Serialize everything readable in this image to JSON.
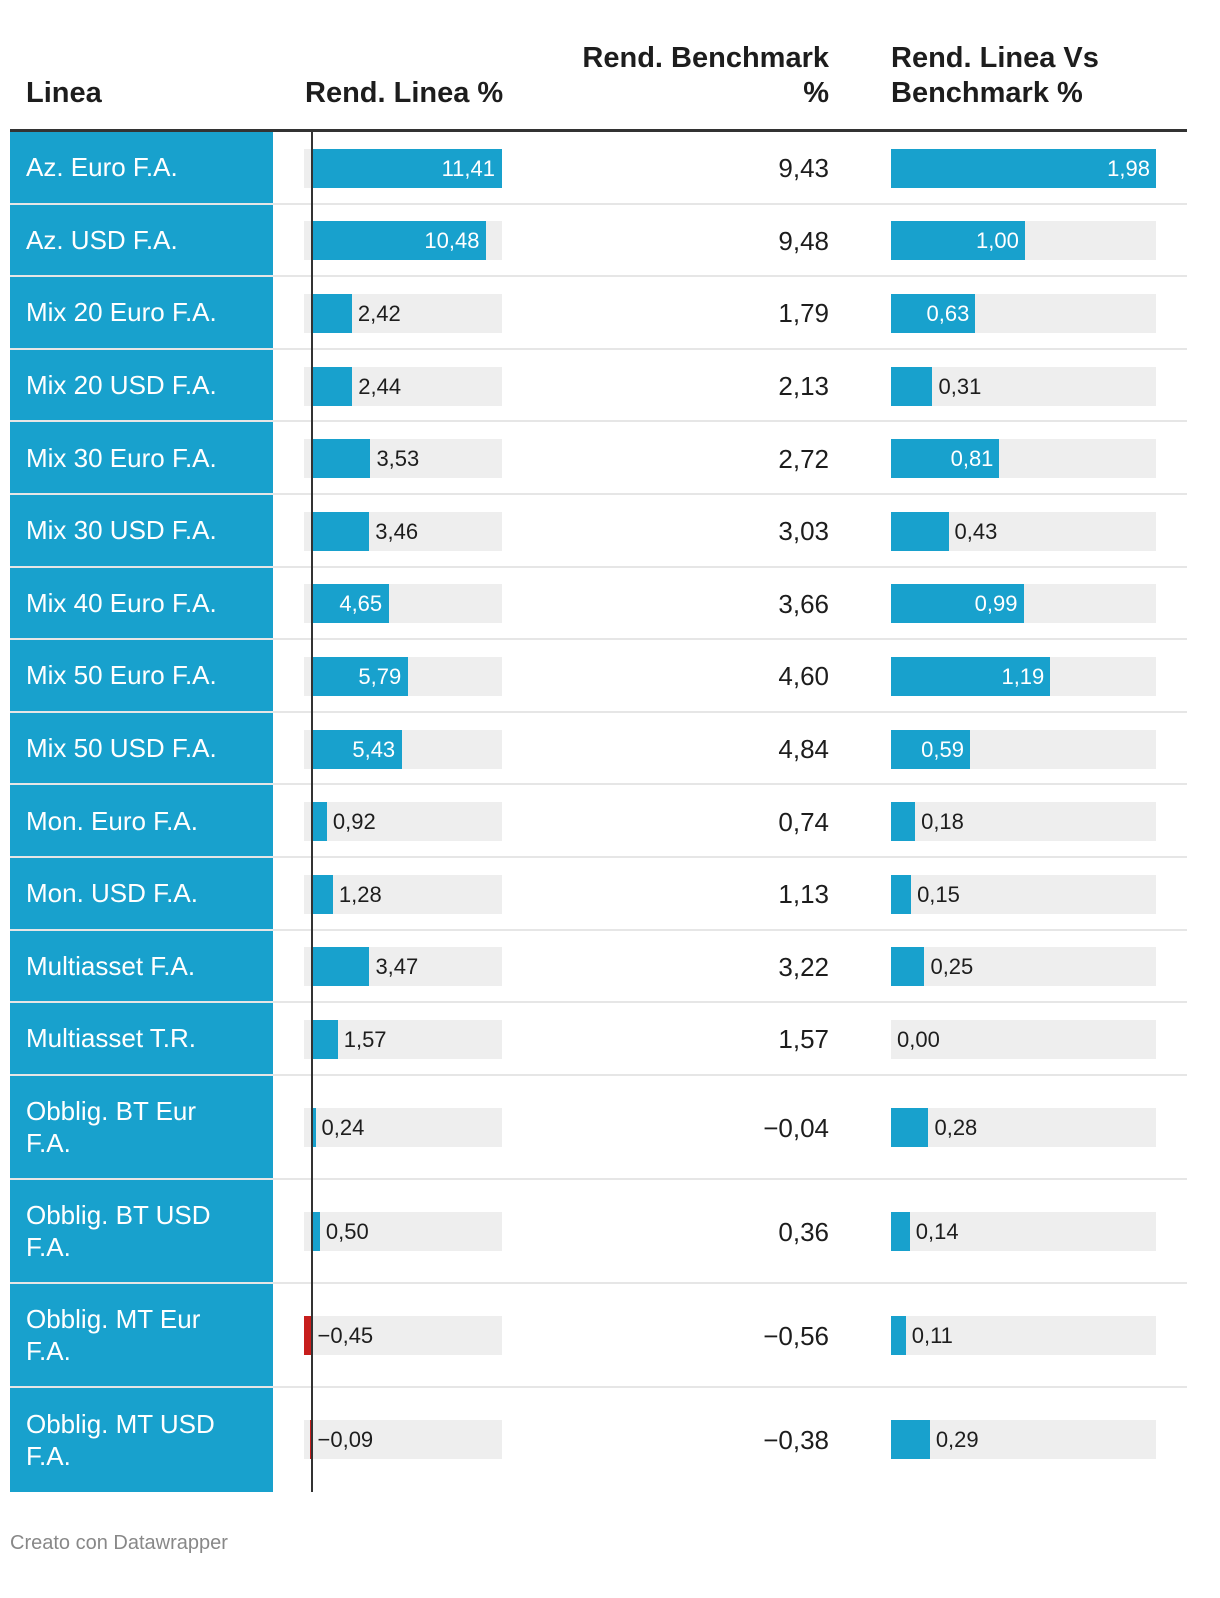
{
  "header": {
    "col1": "Linea",
    "col2": "Rend. Linea %",
    "col3_line1": "Rend. Benchmark",
    "col3_line2": "%",
    "col4_line1": "Rend. Linea Vs",
    "col4_line2": "Benchmark %"
  },
  "colors": {
    "positive": "#18a1cd",
    "negative": "#c71e1d",
    "track": "#eeeeee"
  },
  "chart_data": {
    "type": "table",
    "columns": [
      "Linea",
      "Rend. Linea %",
      "Rend. Benchmark %",
      "Rend. Linea Vs Benchmark %"
    ],
    "rows": [
      {
        "name": "Az. Euro F.A.",
        "rend": 11.41,
        "rend_label": "11,41",
        "bench": "9,43",
        "diff": 1.98,
        "diff_label": "1,98"
      },
      {
        "name": "Az. USD F.A.",
        "rend": 10.48,
        "rend_label": "10,48",
        "bench": "9,48",
        "diff": 1.0,
        "diff_label": "1,00"
      },
      {
        "name": "Mix 20 Euro F.A.",
        "rend": 2.42,
        "rend_label": "2,42",
        "bench": "1,79",
        "diff": 0.63,
        "diff_label": "0,63"
      },
      {
        "name": "Mix 20 USD F.A.",
        "rend": 2.44,
        "rend_label": "2,44",
        "bench": "2,13",
        "diff": 0.31,
        "diff_label": "0,31"
      },
      {
        "name": "Mix 30 Euro F.A.",
        "rend": 3.53,
        "rend_label": "3,53",
        "bench": "2,72",
        "diff": 0.81,
        "diff_label": "0,81"
      },
      {
        "name": "Mix 30 USD F.A.",
        "rend": 3.46,
        "rend_label": "3,46",
        "bench": "3,03",
        "diff": 0.43,
        "diff_label": "0,43"
      },
      {
        "name": "Mix 40 Euro F.A.",
        "rend": 4.65,
        "rend_label": "4,65",
        "bench": "3,66",
        "diff": 0.99,
        "diff_label": "0,99"
      },
      {
        "name": "Mix 50 Euro F.A.",
        "rend": 5.79,
        "rend_label": "5,79",
        "bench": "4,60",
        "diff": 1.19,
        "diff_label": "1,19"
      },
      {
        "name": "Mix 50 USD F.A.",
        "rend": 5.43,
        "rend_label": "5,43",
        "bench": "4,84",
        "diff": 0.59,
        "diff_label": "0,59"
      },
      {
        "name": "Mon. Euro F.A.",
        "rend": 0.92,
        "rend_label": "0,92",
        "bench": "0,74",
        "diff": 0.18,
        "diff_label": "0,18"
      },
      {
        "name": "Mon. USD F.A.",
        "rend": 1.28,
        "rend_label": "1,28",
        "bench": "1,13",
        "diff": 0.15,
        "diff_label": "0,15"
      },
      {
        "name": "Multiasset F.A.",
        "rend": 3.47,
        "rend_label": "3,47",
        "bench": "3,22",
        "diff": 0.25,
        "diff_label": "0,25"
      },
      {
        "name": "Multiasset T.R.",
        "rend": 1.57,
        "rend_label": "1,57",
        "bench": "1,57",
        "diff": 0.0,
        "diff_label": "0,00"
      },
      {
        "name": "Obblig. BT Eur F.A.",
        "rend": 0.24,
        "rend_label": "0,24",
        "bench": "−0,04",
        "diff": 0.28,
        "diff_label": "0,28"
      },
      {
        "name": "Obblig. BT USD F.A.",
        "rend": 0.5,
        "rend_label": "0,50",
        "bench": "0,36",
        "diff": 0.14,
        "diff_label": "0,14"
      },
      {
        "name": "Obblig. MT Eur F.A.",
        "rend": -0.45,
        "rend_label": "−0,45",
        "bench": "−0,56",
        "diff": 0.11,
        "diff_label": "0,11"
      },
      {
        "name": "Obblig. MT USD F.A.",
        "rend": -0.09,
        "rend_label": "−0,09",
        "bench": "−0,38",
        "diff": 0.29,
        "diff_label": "0,29"
      }
    ],
    "rend_range": [
      -0.45,
      11.41
    ],
    "diff_range": [
      0,
      1.98
    ]
  },
  "footer": "Creato con Datawrapper"
}
